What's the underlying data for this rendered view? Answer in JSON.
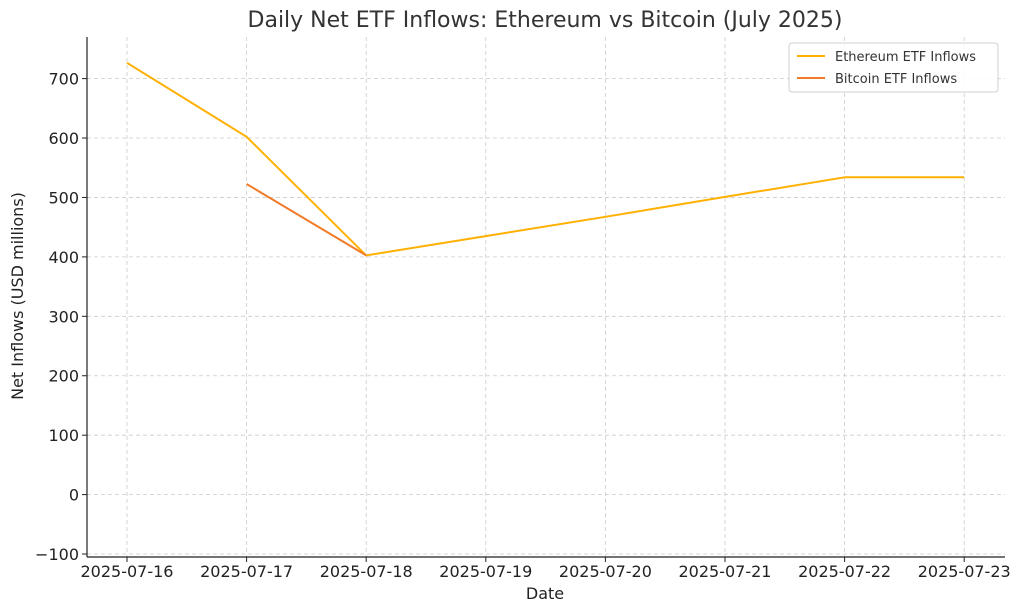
{
  "chart_data": {
    "type": "line",
    "title": "Daily Net ETF Inflows: Ethereum vs Bitcoin (July 2025)",
    "xlabel": "Date",
    "ylabel": "Net Inflows (USD millions)",
    "x": [
      "2025-07-16",
      "2025-07-17",
      "2025-07-18",
      "2025-07-19",
      "2025-07-20",
      "2025-07-21",
      "2025-07-22",
      "2025-07-23"
    ],
    "y_ticks": [
      -100,
      0,
      100,
      200,
      300,
      400,
      500,
      600,
      700
    ],
    "y_tick_labels": [
      "−100",
      "0",
      "100",
      "200",
      "300",
      "400",
      "500",
      "600",
      "700"
    ],
    "ylim": [
      -105,
      770
    ],
    "grid": true,
    "legend_position": "top-right",
    "series": [
      {
        "name": "Ethereum ETF Inflows",
        "color": "#FFB000",
        "values": [
          726.6,
          602.0,
          402.5,
          435.0,
          467.5,
          501.0,
          533.9,
          533.9
        ]
      },
      {
        "name": "Bitcoin ETF Inflows",
        "color": "#F07C2A",
        "values": [
          null,
          522.6,
          402.5,
          null,
          null,
          null,
          null,
          null
        ]
      }
    ]
  }
}
